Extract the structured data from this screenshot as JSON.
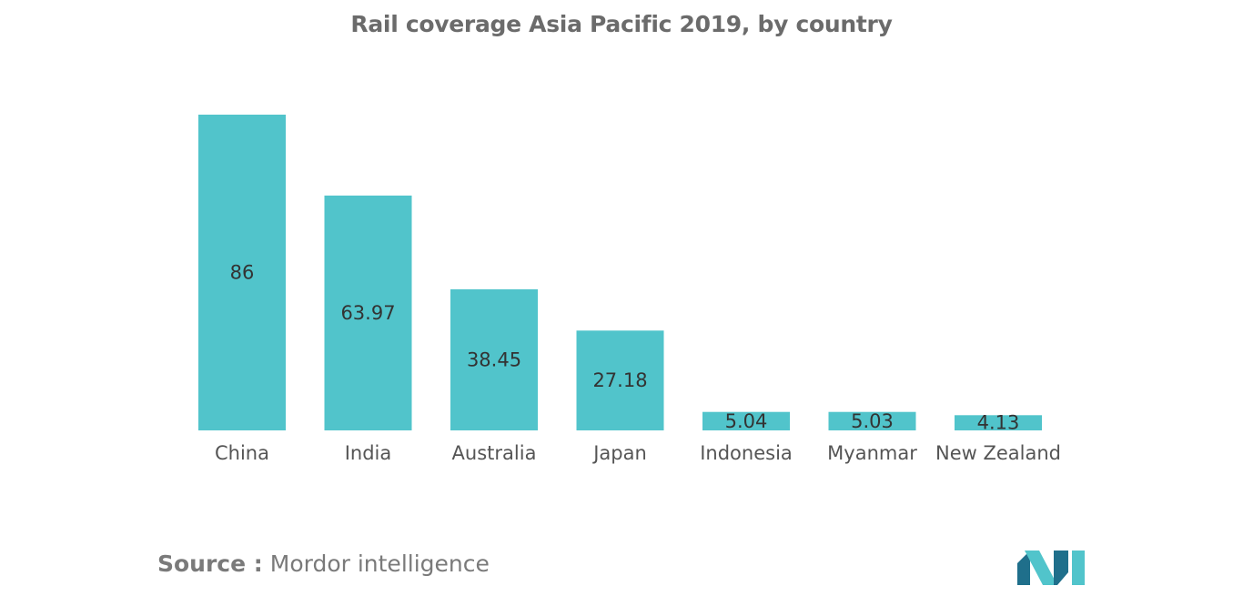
{
  "chart_data": {
    "type": "bar",
    "title": "Rail coverage Asia Pacific 2019, by country",
    "categories": [
      "China",
      "India",
      "Australia",
      "Japan",
      "Indonesia",
      "Myanmar",
      "New Zealand"
    ],
    "values": [
      86,
      63.97,
      38.45,
      27.18,
      5.04,
      5.03,
      4.13
    ],
    "value_labels": [
      "86",
      "63.97",
      "38.45",
      "27.18",
      "5.04",
      "5.03",
      "4.13"
    ],
    "xlabel": "",
    "ylabel": "",
    "ylim": [
      0,
      86
    ],
    "grid": false,
    "legend": "none",
    "bar_color": "#51c4cb",
    "label_color": "#333333",
    "category_color": "#555555"
  },
  "source": {
    "label": "Source :",
    "text": "Mordor intelligence"
  },
  "logo": {
    "icon": "mordor-intelligence-logo-icon",
    "color_dark": "#1f6f8b",
    "color_light": "#51c4cb"
  }
}
